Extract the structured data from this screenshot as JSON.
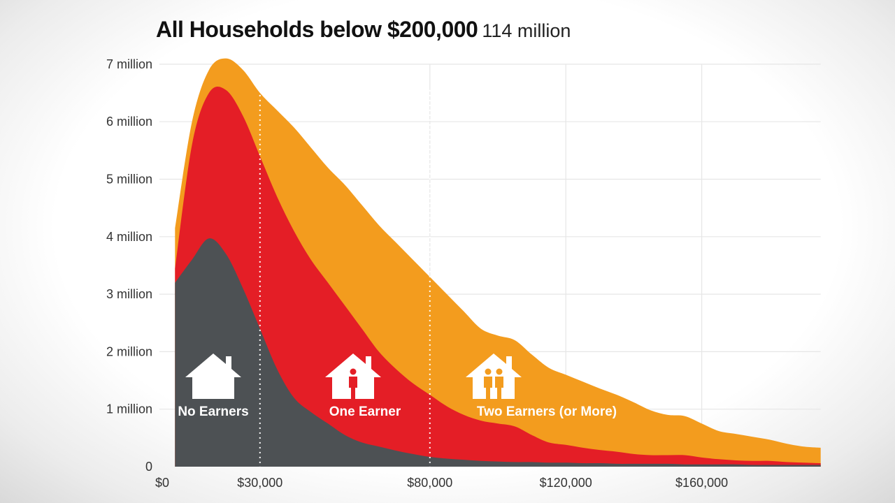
{
  "title": {
    "main": "All Households below $200,000",
    "total": "114 million"
  },
  "chart_data": {
    "type": "area",
    "stacked": true,
    "title": "All Households below $200,000",
    "subtitle": "114 million",
    "xlabel": "",
    "ylabel": "",
    "xlim": [
      0,
      195000
    ],
    "ylim": [
      0,
      7
    ],
    "grid": true,
    "x_ticks": [
      {
        "value": 0,
        "label": "$0"
      },
      {
        "value": 30000,
        "label": "$30,000"
      },
      {
        "value": 80000,
        "label": "$80,000"
      },
      {
        "value": 120000,
        "label": "$120,000"
      },
      {
        "value": 160000,
        "label": "$160,000"
      }
    ],
    "y_ticks": [
      {
        "value": 0,
        "label": "0"
      },
      {
        "value": 1,
        "label": "1 million"
      },
      {
        "value": 2,
        "label": "2 million"
      },
      {
        "value": 3,
        "label": "3 million"
      },
      {
        "value": 4,
        "label": "4 million"
      },
      {
        "value": 5,
        "label": "5 million"
      },
      {
        "value": 6,
        "label": "6 million"
      },
      {
        "value": 7,
        "label": "7 million"
      }
    ],
    "marker_lines": [
      30000,
      80000
    ],
    "x": [
      5000,
      10000,
      15000,
      20000,
      25000,
      30000,
      35000,
      40000,
      45000,
      50000,
      55000,
      60000,
      65000,
      70000,
      75000,
      80000,
      85000,
      90000,
      95000,
      100000,
      105000,
      110000,
      115000,
      120000,
      125000,
      130000,
      135000,
      140000,
      145000,
      150000,
      155000,
      160000,
      165000,
      170000,
      175000,
      180000,
      185000,
      190000,
      195000
    ],
    "series": [
      {
        "name": "No Earners",
        "color": "#4d5154",
        "values": [
          3.2,
          3.6,
          3.97,
          3.7,
          3.1,
          2.4,
          1.7,
          1.2,
          0.95,
          0.75,
          0.55,
          0.42,
          0.35,
          0.28,
          0.22,
          0.17,
          0.14,
          0.12,
          0.1,
          0.09,
          0.08,
          0.08,
          0.07,
          0.07,
          0.06,
          0.06,
          0.05,
          0.05,
          0.05,
          0.05,
          0.04,
          0.04,
          0.04,
          0.04,
          0.03,
          0.03,
          0.03,
          0.03,
          0.03
        ]
      },
      {
        "name": "One Earner",
        "color": "#e41e26",
        "values": [
          0.25,
          2.0,
          2.53,
          2.85,
          3.0,
          3.0,
          3.0,
          2.9,
          2.65,
          2.45,
          2.25,
          1.98,
          1.65,
          1.42,
          1.23,
          1.08,
          0.91,
          0.78,
          0.7,
          0.66,
          0.62,
          0.47,
          0.35,
          0.31,
          0.27,
          0.23,
          0.21,
          0.17,
          0.15,
          0.15,
          0.16,
          0.12,
          0.09,
          0.07,
          0.07,
          0.07,
          0.05,
          0.04,
          0.03
        ]
      },
      {
        "name": "Two Earners (or More)",
        "color": "#f39c1e",
        "values": [
          0.7,
          0.4,
          0.4,
          0.55,
          0.8,
          1.1,
          1.5,
          1.8,
          1.95,
          2.0,
          2.1,
          2.15,
          2.2,
          2.2,
          2.15,
          2.05,
          1.95,
          1.8,
          1.6,
          1.53,
          1.5,
          1.4,
          1.3,
          1.22,
          1.15,
          1.07,
          0.99,
          0.9,
          0.78,
          0.7,
          0.68,
          0.59,
          0.49,
          0.46,
          0.42,
          0.37,
          0.32,
          0.28,
          0.27
        ]
      }
    ],
    "series_icons": [
      "house-empty-icon",
      "house-one-person-icon",
      "house-two-people-icon"
    ]
  }
}
